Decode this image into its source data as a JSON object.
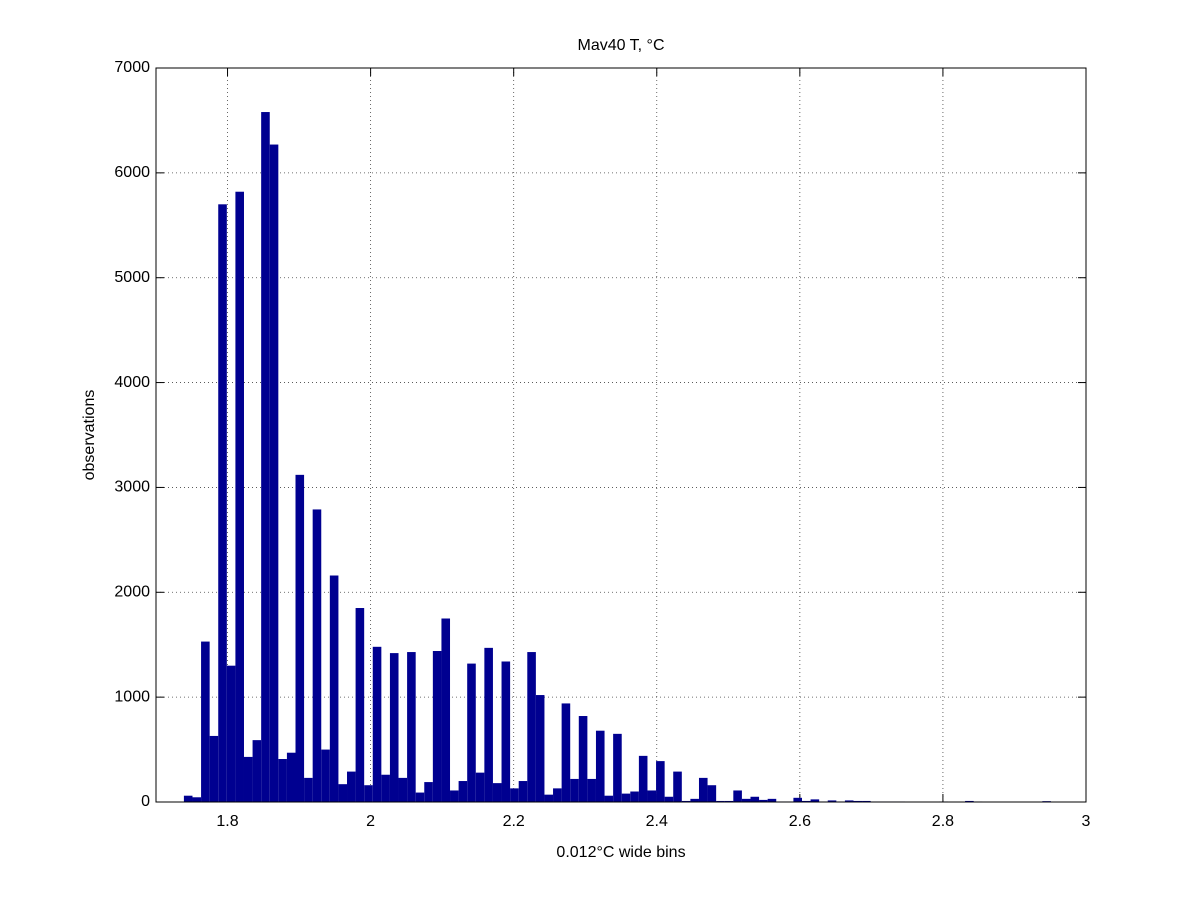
{
  "chart_data": {
    "type": "histogram",
    "title": "Mav40 T, °C",
    "x_label": "0.012°C wide bins",
    "y_label": "observations",
    "color": "#000090",
    "grid": true,
    "bins": [
      1.739,
      1.751,
      1.763,
      1.775,
      1.787,
      1.799,
      1.811,
      1.823,
      1.835,
      1.847,
      1.859,
      1.871,
      1.883,
      1.895,
      1.907,
      1.919,
      1.931,
      1.943,
      1.955,
      1.967,
      1.979,
      1.991,
      2.003,
      2.015,
      2.027,
      2.039,
      2.051,
      2.063,
      2.075,
      2.087,
      2.099,
      2.111,
      2.123,
      2.135,
      2.147,
      2.159,
      2.171,
      2.183,
      2.195,
      2.207,
      2.219,
      2.231,
      2.243,
      2.255,
      2.267,
      2.279,
      2.291,
      2.303,
      2.315,
      2.327,
      2.339,
      2.351,
      2.363,
      2.375,
      2.387,
      2.399,
      2.411,
      2.423,
      2.435,
      2.447,
      2.459,
      2.471,
      2.483,
      2.495,
      2.507,
      2.519,
      2.531,
      2.543,
      2.555,
      2.567,
      2.579,
      2.591,
      2.603,
      2.615,
      2.627,
      2.639,
      2.651,
      2.663,
      2.675,
      2.687,
      2.699,
      2.711,
      2.723,
      2.735,
      2.747,
      2.759,
      2.771,
      2.783,
      2.795,
      2.807,
      2.819,
      2.831,
      2.843,
      2.855,
      2.867,
      2.879,
      2.891,
      2.903,
      2.915,
      2.927,
      2.939,
      2.951,
      2.963
    ],
    "values": [
      60,
      45,
      1530,
      630,
      5700,
      1300,
      5820,
      430,
      590,
      6580,
      6270,
      410,
      470,
      3120,
      230,
      2790,
      500,
      2160,
      170,
      290,
      1850,
      160,
      1480,
      260,
      1420,
      230,
      1430,
      90,
      190,
      1440,
      1750,
      110,
      200,
      1320,
      280,
      1470,
      180,
      1340,
      130,
      200,
      1430,
      1020,
      70,
      130,
      940,
      220,
      820,
      220,
      680,
      60,
      650,
      80,
      100,
      440,
      110,
      390,
      50,
      290,
      10,
      30,
      230,
      160,
      10,
      10,
      110,
      30,
      50,
      20,
      30,
      5,
      5,
      40,
      10,
      25,
      5,
      15,
      5,
      15,
      10,
      10,
      5,
      5,
      5,
      5,
      0,
      0,
      0,
      0,
      5,
      0,
      0,
      10,
      5,
      0,
      0,
      0,
      0,
      0,
      0,
      0,
      8,
      0
    ],
    "xlim": [
      1.7,
      3
    ],
    "ylim": [
      0,
      7000
    ],
    "xticks": [
      1.8,
      2,
      2.2,
      2.4,
      2.6,
      2.8,
      3
    ],
    "yticks": [
      0,
      1000,
      2000,
      3000,
      4000,
      5000,
      6000,
      7000
    ]
  }
}
